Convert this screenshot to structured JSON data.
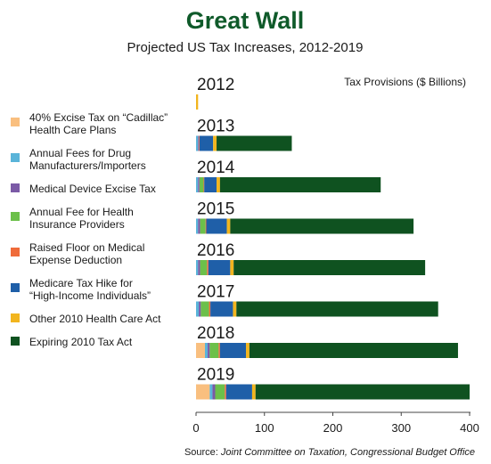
{
  "chart_data": {
    "type": "bar",
    "orientation": "horizontal",
    "stacked": true,
    "title": "Great Wall",
    "subtitle": "Projected US Tax Increases, 2012-2019",
    "value_label": "Tax Provisions ($ Billions)",
    "source_prefix": "Source: ",
    "source_text": "Joint Committee on Taxation, Congressional Budget Office",
    "categories": [
      "2012",
      "2013",
      "2014",
      "2015",
      "2016",
      "2017",
      "2018",
      "2019"
    ],
    "xlim": [
      0,
      400
    ],
    "xticks": [
      0,
      100,
      200,
      300,
      400
    ],
    "grid": false,
    "legend_position": "left",
    "series": [
      {
        "name": "40% Excise Tax on “Cadillac” Health Care Plans",
        "color": "#f9bf7f",
        "values": [
          0,
          0,
          0,
          0,
          0,
          0,
          13,
          20
        ]
      },
      {
        "name": "Annual Fees for Drug Manufacturers/Importers",
        "color": "#5ab4d9",
        "values": [
          0,
          3,
          3,
          3,
          3,
          4,
          4,
          4
        ]
      },
      {
        "name": "Medical Device Excise Tax",
        "color": "#7b5aa6",
        "values": [
          0,
          1,
          2,
          3,
          3,
          3,
          3,
          4
        ]
      },
      {
        "name": "Annual Fee for Health Insurance Providers",
        "color": "#6cc04a",
        "values": [
          0,
          0,
          6,
          8,
          10,
          12,
          13,
          14
        ]
      },
      {
        "name": "Raised Floor on Medical Expense Deduction",
        "color": "#ef6b3a",
        "values": [
          0,
          1,
          1,
          1,
          2,
          2,
          2,
          2
        ]
      },
      {
        "name": "Medicare Tax Hike for “High-Income Individuals”",
        "color": "#1f5fa8",
        "values": [
          0,
          20,
          18,
          30,
          32,
          33,
          38,
          38
        ]
      },
      {
        "name": "Other 2010 Health Care Act",
        "color": "#f2b51e",
        "values": [
          3,
          5,
          5,
          5,
          5,
          5,
          5,
          5
        ]
      },
      {
        "name": "Expiring 2010 Tax Act",
        "color": "#0f5220",
        "values": [
          0,
          110,
          235,
          268,
          280,
          295,
          305,
          313
        ]
      }
    ]
  }
}
